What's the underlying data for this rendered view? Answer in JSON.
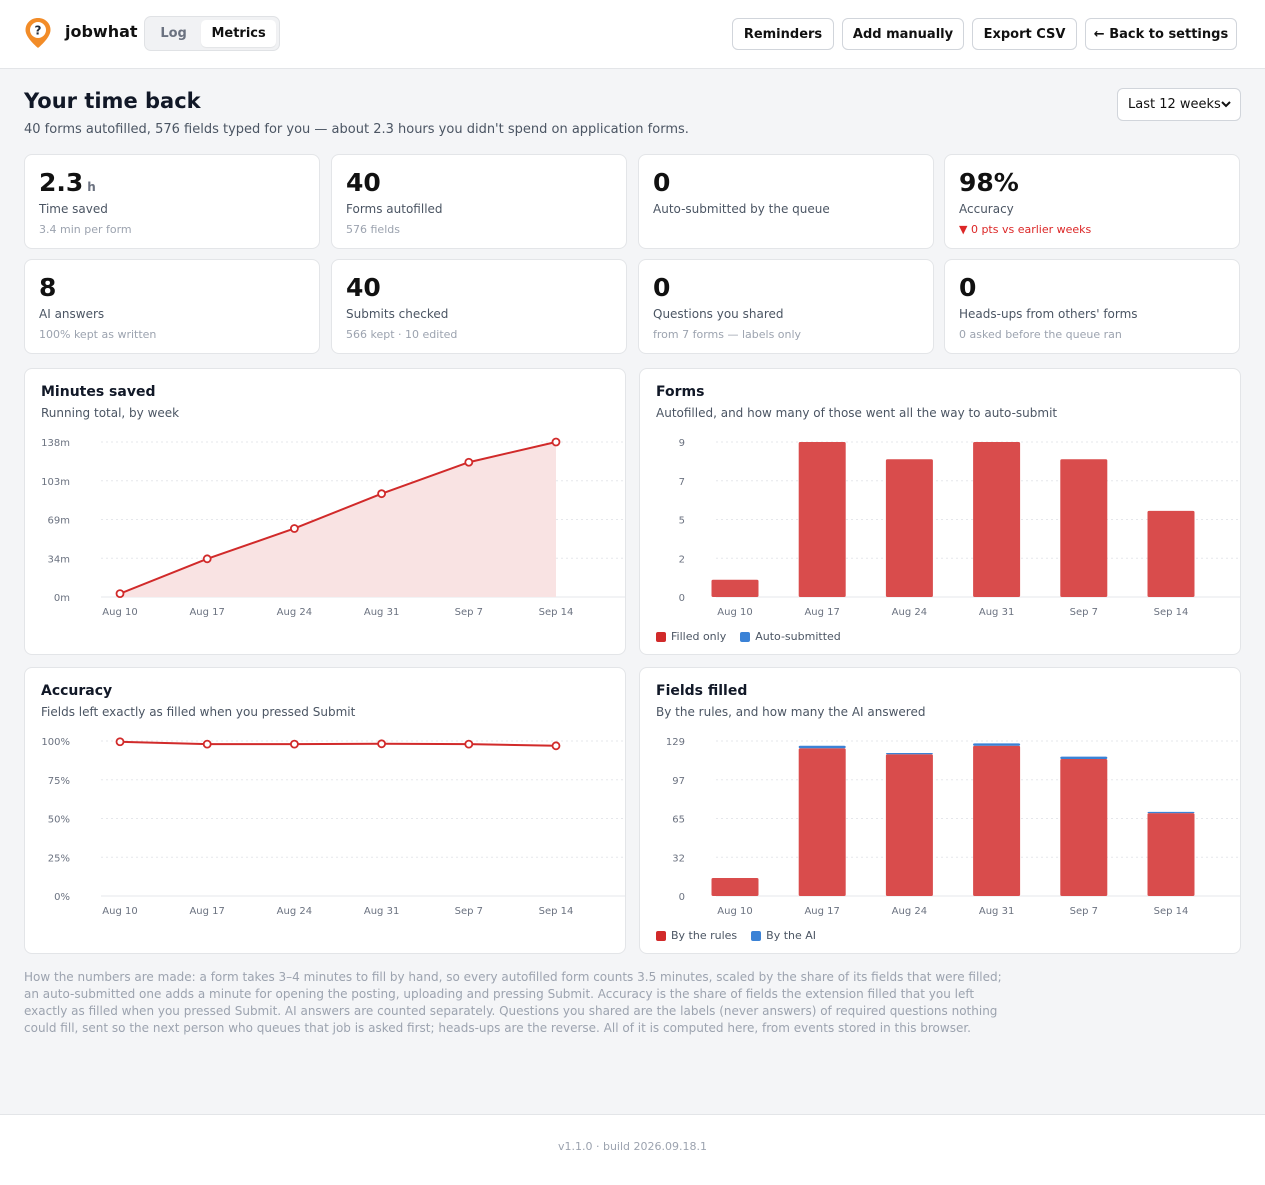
{
  "app": {
    "brand": "jobwhat",
    "tabs": [
      {
        "label": "Log",
        "active": false
      },
      {
        "label": "Metrics",
        "active": true
      }
    ],
    "buttons": {
      "reminders": "Reminders",
      "add_manually": "Add manually",
      "export_csv": "Export CSV",
      "back": "← Back to settings"
    },
    "accent": "#f28c28"
  },
  "page": {
    "title": "Your time back",
    "subtitle": "40 forms autofilled, 576 fields typed for you — about 2.3 hours you didn't spend on application forms.",
    "range": "Last 12 weeks"
  },
  "stats": [
    {
      "value": "2.3",
      "unit": "h",
      "label": "Time saved",
      "sub": "3.4 min per form"
    },
    {
      "value": "40",
      "label": "Forms autofilled",
      "sub": "576 fields"
    },
    {
      "value": "0",
      "label": "Auto-submitted by the queue",
      "sub": ""
    },
    {
      "value": "98%",
      "label": "Accuracy",
      "sub": "▼ 0 pts vs earlier weeks",
      "trend": "down"
    },
    {
      "value": "8",
      "label": "AI answers",
      "sub": "100% kept as written"
    },
    {
      "value": "40",
      "label": "Submits checked",
      "sub": "566 kept · 10 edited"
    },
    {
      "value": "0",
      "label": "Questions you shared",
      "sub": "from 7 forms — labels only"
    },
    {
      "value": "0",
      "label": "Heads-ups from others' forms",
      "sub": "0 asked before the queue ran"
    }
  ],
  "colors": {
    "red": "#d94c4c",
    "blue": "#3b82d6",
    "line": "#d12a2a",
    "area": "#f9e3e3",
    "grid": "#e5e7eb",
    "tick": "#6b7280"
  },
  "chart_data": [
    {
      "id": "minutes",
      "type": "area",
      "title": "Minutes saved",
      "subtitle": "Running total, by week",
      "categories": [
        "Aug 10",
        "Aug 17",
        "Aug 24",
        "Aug 31",
        "Sep 7",
        "Sep 14"
      ],
      "values": [
        3,
        34,
        61,
        92,
        120,
        138
      ],
      "ylim": [
        0,
        138
      ],
      "yticks": [
        "0m",
        "34m",
        "69m",
        "103m",
        "138m"
      ],
      "grid": true
    },
    {
      "id": "forms",
      "type": "bar",
      "title": "Forms",
      "subtitle": "Autofilled, and how many of those went all the way to auto-submit",
      "categories": [
        "Aug 10",
        "Aug 17",
        "Aug 24",
        "Aug 31",
        "Sep 7",
        "Sep 14"
      ],
      "series": [
        {
          "name": "Filled only",
          "values": [
            1,
            9,
            8,
            9,
            8,
            5
          ]
        },
        {
          "name": "Auto-submitted",
          "values": [
            0,
            0,
            0,
            0,
            0,
            0
          ]
        }
      ],
      "ylim": [
        0,
        9
      ],
      "yticks": [
        "0",
        "2",
        "5",
        "7",
        "9"
      ],
      "grid": true,
      "legend": "bottom-left"
    },
    {
      "id": "accuracy",
      "type": "line",
      "title": "Accuracy",
      "subtitle": "Fields left exactly as filled when you pressed Submit",
      "categories": [
        "Aug 10",
        "Aug 17",
        "Aug 24",
        "Aug 31",
        "Sep 7",
        "Sep 14"
      ],
      "values": [
        99.5,
        98,
        98,
        98.2,
        98,
        96.9
      ],
      "ylim": [
        0,
        100
      ],
      "yticks": [
        "0%",
        "25%",
        "50%",
        "75%",
        "100%"
      ],
      "grid": true
    },
    {
      "id": "fields",
      "type": "bar",
      "stacked": true,
      "title": "Fields filled",
      "subtitle": "By the rules, and how many the AI answered",
      "categories": [
        "Aug 10",
        "Aug 17",
        "Aug 24",
        "Aug 31",
        "Sep 7",
        "Sep 14"
      ],
      "series": [
        {
          "name": "By the rules",
          "values": [
            15,
            123,
            118,
            125,
            114,
            69
          ]
        },
        {
          "name": "By the AI",
          "values": [
            0,
            2,
            1,
            2,
            2,
            1
          ]
        }
      ],
      "ylim": [
        0,
        129
      ],
      "yticks": [
        "0",
        "32",
        "65",
        "97",
        "129"
      ],
      "grid": true,
      "legend": "bottom-left"
    }
  ],
  "note": "How the numbers are made: a form takes 3–4 minutes to fill by hand, so every autofilled form counts 3.5 minutes, scaled by the share of its fields that were filled; an auto-submitted one adds a minute for opening the posting, uploading and pressing Submit. Accuracy is the share of fields the extension filled that you left exactly as filled when you pressed Submit. AI answers are counted separately. Questions you shared are the labels (never answers) of required questions nothing could fill, sent so the next person who queues that job is asked first; heads-ups are the reverse. All of it is computed here, from events stored in this browser.",
  "footer": "v1.1.0 · build 2026.09.18.1"
}
